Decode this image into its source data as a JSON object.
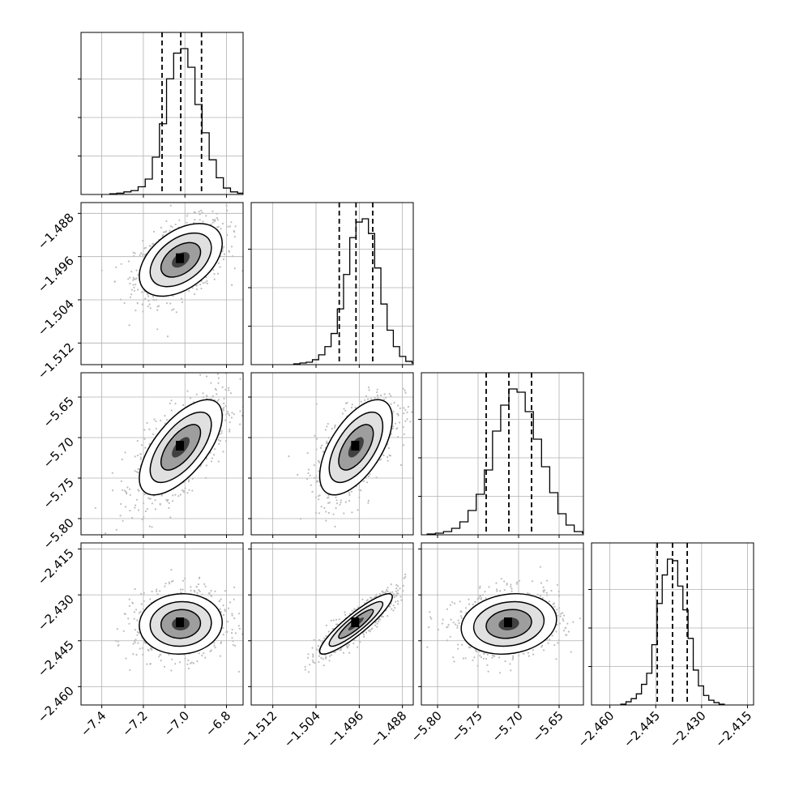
{
  "chart_data": {
    "type": "corner",
    "parameters": [
      {
        "ticks": [
          "−7.4",
          "−7.2",
          "−7.0",
          "−6.8"
        ],
        "tick_values": [
          -7.4,
          -7.2,
          -7.0,
          -6.8
        ],
        "range": [
          -7.5,
          -6.72
        ],
        "mean": -7.02,
        "std": 0.095,
        "quantiles": [
          -7.11,
          -7.02,
          -6.92
        ]
      },
      {
        "ticks": [
          "−1.512",
          "−1.504",
          "−1.496",
          "−1.488"
        ],
        "tick_values": [
          -1.512,
          -1.504,
          -1.496,
          -1.488
        ],
        "range": [
          -1.516,
          -1.486
        ],
        "mean": -1.4966,
        "std": 0.0032,
        "quantiles": [
          -1.4997,
          -1.4966,
          -1.4935
        ]
      },
      {
        "ticks": [
          "−5.80",
          "−5.75",
          "−5.70",
          "−5.65"
        ],
        "tick_values": [
          -5.8,
          -5.75,
          -5.7,
          -5.65
        ],
        "range": [
          -5.82,
          -5.62
        ],
        "mean": -5.712,
        "std": 0.028,
        "quantiles": [
          -5.74,
          -5.712,
          -5.684
        ]
      },
      {
        "ticks": [
          "−2.460",
          "−2.445",
          "−2.430",
          "−2.415"
        ],
        "tick_values": [
          -2.46,
          -2.445,
          -2.43,
          -2.415
        ],
        "range": [
          -2.466,
          -2.413
        ],
        "mean": -2.4395,
        "std": 0.0047,
        "quantiles": [
          -2.4445,
          -2.4395,
          -2.4347
        ]
      }
    ],
    "correlations": [
      [
        1,
        0.45,
        0.65,
        0.05
      ],
      [
        0.45,
        1,
        0.6,
        0.9
      ],
      [
        0.65,
        0.6,
        1,
        0.15
      ],
      [
        0.05,
        0.9,
        0.15,
        1
      ]
    ],
    "histograms": [
      [
        1,
        2,
        4,
        6,
        12,
        24,
        58,
        110,
        180,
        220,
        227,
        198,
        140,
        96,
        54,
        26,
        10,
        4,
        2,
        1
      ],
      [
        1,
        2,
        3,
        6,
        12,
        22,
        38,
        68,
        110,
        155,
        174,
        178,
        160,
        118,
        74,
        42,
        22,
        10,
        4,
        2
      ],
      [
        1,
        2,
        4,
        8,
        16,
        30,
        50,
        80,
        128,
        160,
        180,
        176,
        152,
        118,
        84,
        52,
        26,
        12,
        4,
        2
      ],
      [
        1,
        4,
        8,
        14,
        26,
        40,
        76,
        128,
        164,
        184,
        182,
        150,
        120,
        84,
        44,
        24,
        12,
        6,
        3,
        1
      ]
    ],
    "grid": true,
    "colors": {
      "hist": "#000000",
      "points": "#bdbdbd",
      "density": "#000000"
    }
  }
}
